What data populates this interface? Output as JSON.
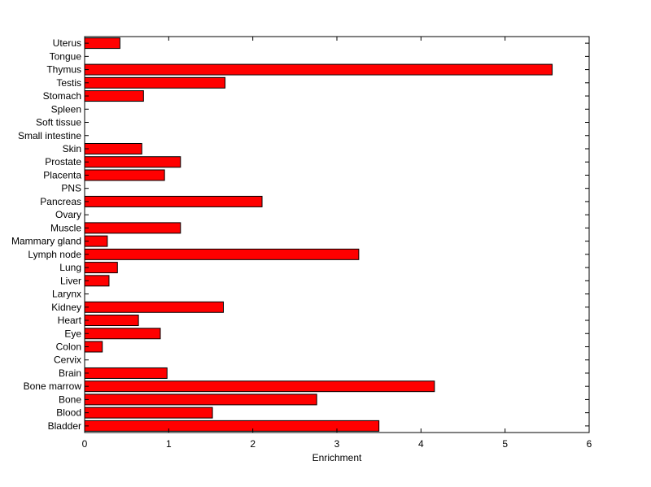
{
  "chart_data": {
    "type": "bar",
    "orientation": "horizontal",
    "categories": [
      "Uterus",
      "Tongue",
      "Thymus",
      "Testis",
      "Stomach",
      "Spleen",
      "Soft tissue",
      "Small intestine",
      "Skin",
      "Prostate",
      "Placenta",
      "PNS",
      "Pancreas",
      "Ovary",
      "Muscle",
      "Mammary gland",
      "Lymph node",
      "Lung",
      "Liver",
      "Larynx",
      "Kidney",
      "Heart",
      "Eye",
      "Colon",
      "Cervix",
      "Brain",
      "Bone marrow",
      "Bone",
      "Blood",
      "Bladder"
    ],
    "values": [
      0.42,
      0,
      5.56,
      1.67,
      0.7,
      0,
      0,
      0,
      0.68,
      1.14,
      0.95,
      0,
      2.11,
      0,
      1.14,
      0.27,
      3.26,
      0.39,
      0.29,
      0,
      1.65,
      0.64,
      0.9,
      0.21,
      0,
      0.98,
      4.16,
      2.76,
      1.52,
      3.5
    ],
    "xlabel": "Enrichment",
    "ylabel": "",
    "title": "",
    "xlim": [
      0,
      6
    ],
    "xticks": [
      0,
      1,
      2,
      3,
      4,
      5,
      6
    ],
    "grid": false,
    "bar_color": "#ff0000",
    "bar_edge_color": "#000000"
  }
}
